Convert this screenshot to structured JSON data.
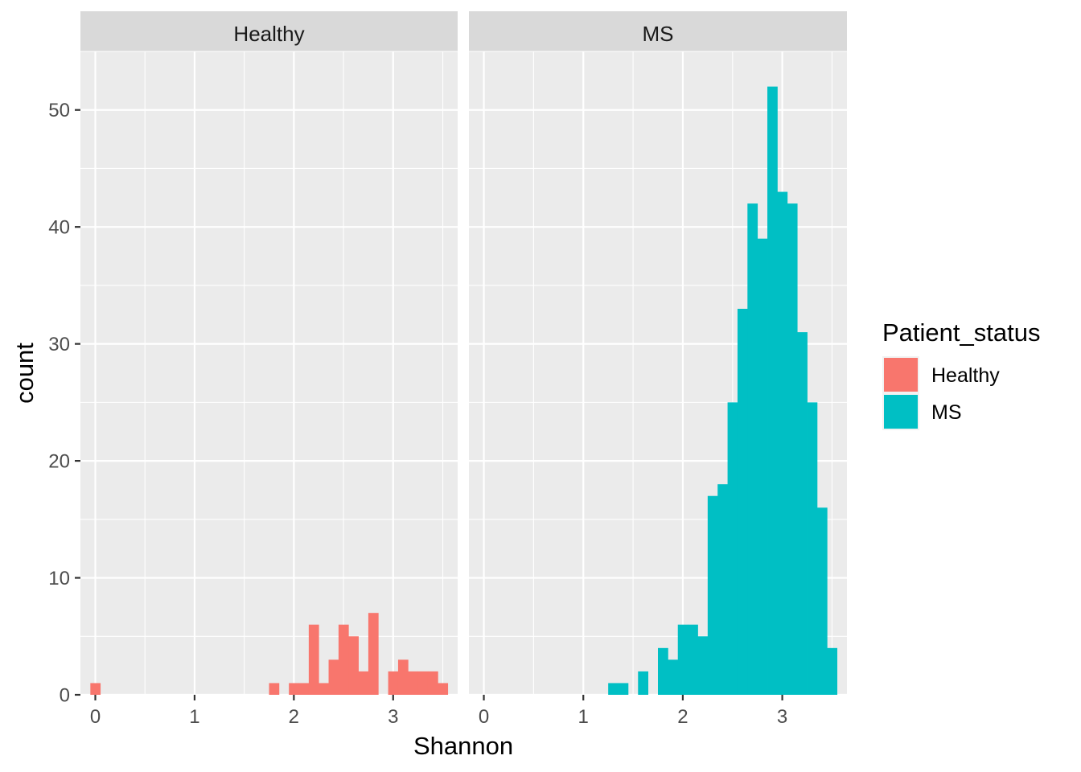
{
  "chart_data": {
    "type": "bar",
    "subtype": "faceted-histogram",
    "title": "",
    "xlabel": "Shannon",
    "ylabel": "count",
    "xlim": [
      -0.15,
      3.65
    ],
    "ylim": [
      0,
      55
    ],
    "binwidth": 0.1,
    "x_ticks": [
      0,
      1,
      2,
      3
    ],
    "x_tick_labels": [
      "0",
      "1",
      "2",
      "3"
    ],
    "y_ticks": [
      0,
      10,
      20,
      30,
      40,
      50
    ],
    "y_tick_labels": [
      "0",
      "10",
      "20",
      "30",
      "40",
      "50"
    ],
    "legend": {
      "title": "Patient_status",
      "position": "right",
      "entries": [
        {
          "label": "Healthy",
          "color": "#F8766D"
        },
        {
          "label": "MS",
          "color": "#00BFC4"
        }
      ]
    },
    "facets": [
      {
        "label": "Healthy",
        "color": "#F8766D",
        "bin_centers": [
          0.0,
          1.8,
          2.0,
          2.1,
          2.2,
          2.3,
          2.4,
          2.5,
          2.6,
          2.7,
          2.8,
          2.9,
          3.0,
          3.1,
          3.2,
          3.3,
          3.4,
          3.5
        ],
        "counts": [
          1,
          1,
          1,
          1,
          6,
          1,
          3,
          6,
          5,
          2,
          7,
          0,
          2,
          3,
          2,
          2,
          2,
          1
        ]
      },
      {
        "label": "MS",
        "color": "#00BFC4",
        "bin_centers": [
          1.3,
          1.4,
          1.6,
          1.8,
          1.9,
          2.0,
          2.1,
          2.2,
          2.3,
          2.4,
          2.5,
          2.6,
          2.7,
          2.8,
          2.9,
          3.0,
          3.1,
          3.2,
          3.3,
          3.4,
          3.5
        ],
        "counts": [
          1,
          1,
          2,
          4,
          3,
          6,
          6,
          5,
          17,
          18,
          25,
          33,
          42,
          39,
          52,
          43,
          42,
          31,
          25,
          16,
          4
        ]
      }
    ]
  }
}
